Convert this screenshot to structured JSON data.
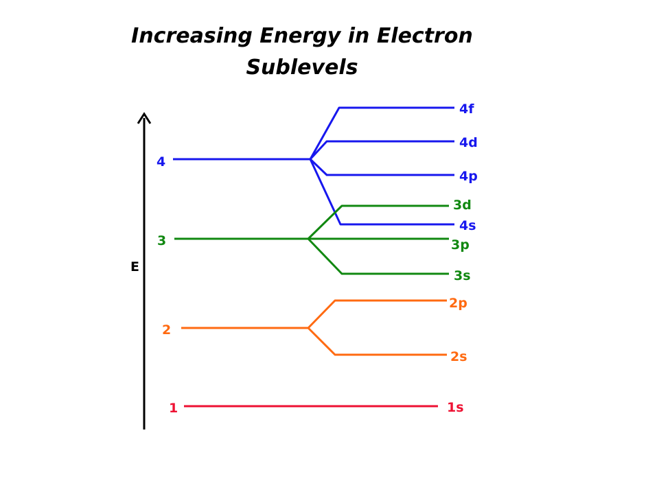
{
  "title_line1": "Increasing Energy in Electron",
  "title_line2": "Sublevels",
  "axis_label": "E",
  "colors": {
    "n1": "#ee1133",
    "n2": "#ff6a11",
    "n3": "#118811",
    "n4": "#1717ee",
    "axis": "#000000"
  },
  "levels": [
    {
      "n": "4",
      "sublevels": [
        "4f",
        "4d",
        "4p",
        "4s"
      ]
    },
    {
      "n": "3",
      "sublevels": [
        "3d",
        "3p",
        "3s"
      ]
    },
    {
      "n": "2",
      "sublevels": [
        "2p",
        "2s"
      ]
    },
    {
      "n": "1",
      "sublevels": [
        "1s"
      ]
    }
  ]
}
